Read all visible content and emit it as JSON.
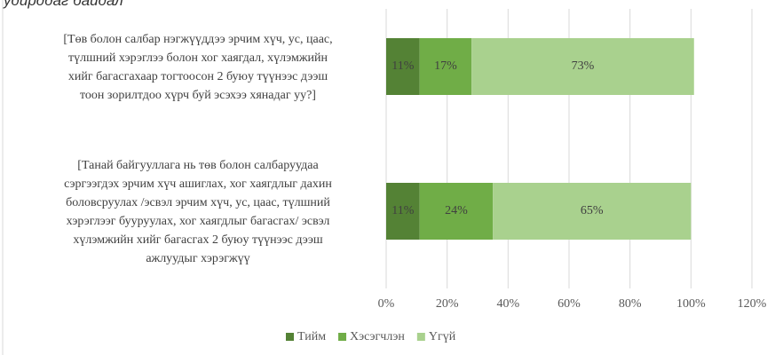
{
  "chart_data": {
    "type": "stacked-barh",
    "title": "удирддаг байдал",
    "categories": [
      "[Төв болон салбар нэгжүүддээ эрчим хүч, ус, цаас,\nтүлшний хэрэглээ болон хог хаягдал, хүлэмжийн\nхийг багасгахаар тогтоосон 2 буюу түүнээс дээш\nтоон зорилтдоо хүрч буй эсэхээ хянадаг уу?]",
      "[Танай байгууллага нь төв болон салбаруудаа\nсэргээгдэх эрчим хүч ашиглах, хог хаягдлыг дахин\nболовсруулах /эсвэл эрчим хүч, ус, цаас, түлшний\nхэрэглээг бууруулах, хог хаягдлыг багасгах/ эсвэл\nхүлэмжийн хийг багасгах 2 буюу түүнээс дээш\nажлуудыг хэрэгжүү"
    ],
    "series": [
      {
        "name": "Тийм",
        "color": "#548235",
        "values": [
          11,
          11
        ],
        "value_labels": [
          "11%",
          "11%"
        ]
      },
      {
        "name": "Хэсэгчлэн",
        "color": "#70ad47",
        "values": [
          17,
          24
        ],
        "value_labels": [
          "17%",
          "24%"
        ]
      },
      {
        "name": "Үгүй",
        "color": "#a9d18e",
        "values": [
          73,
          65
        ],
        "value_labels": [
          "73%",
          "65%"
        ]
      }
    ],
    "xlim": [
      0,
      120
    ],
    "xticks": [
      {
        "value": 0,
        "label": "0%"
      },
      {
        "value": 20,
        "label": "20%"
      },
      {
        "value": 40,
        "label": "40%"
      },
      {
        "value": 60,
        "label": "60%"
      },
      {
        "value": 80,
        "label": "80%"
      },
      {
        "value": 100,
        "label": "100%"
      },
      {
        "value": 120,
        "label": "120%"
      }
    ],
    "grid": true,
    "legend": "bottom"
  }
}
